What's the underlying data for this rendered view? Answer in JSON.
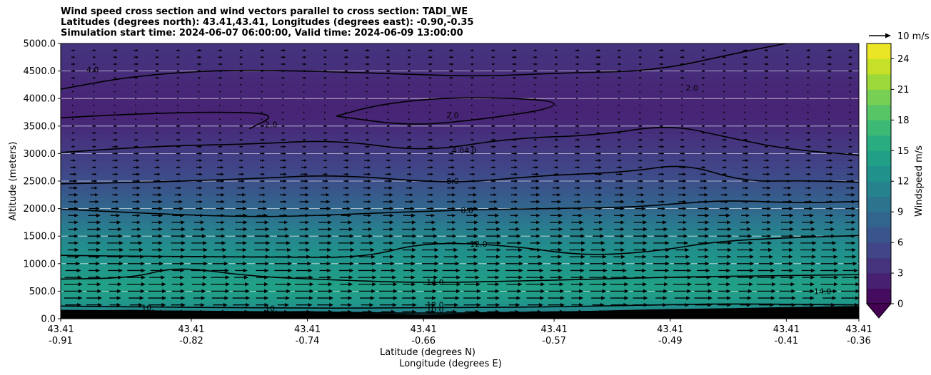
{
  "chart_data": {
    "type": "contourf_cross_section",
    "title_lines": [
      "Wind speed cross section and wind vectors parallel to cross section: TADI_WE",
      "Latitudes (degrees north): 43.41,43.41, Longitudes (degrees east): -0.90,-0.35",
      "Simulation start time: 2024-06-07 06:00:00, Valid time: 2024-06-09 13:00:00"
    ],
    "ylabel": "Altitude (meters)",
    "xlabel_lat": "Latitude (degrees N)",
    "xlabel_lon": "Longitude (degrees E)",
    "ylim": [
      0,
      5000
    ],
    "yticks": [
      "0.0",
      "500.0",
      "1000.0",
      "1500.0",
      "2000.0",
      "2500.0",
      "3000.0",
      "3500.0",
      "4000.0",
      "4500.0",
      "5000.0"
    ],
    "ytick_values": [
      0,
      500,
      1000,
      1500,
      2000,
      2500,
      3000,
      3500,
      4000,
      4500,
      5000
    ],
    "xlim": [
      -0.91,
      -0.36
    ],
    "xticks": [
      {
        "lon_value": -0.91,
        "lat": "43.41",
        "lon": "-0.91"
      },
      {
        "lon_value": -0.82,
        "lat": "43.41",
        "lon": "-0.82"
      },
      {
        "lon_value": -0.74,
        "lat": "43.41",
        "lon": "-0.74"
      },
      {
        "lon_value": -0.66,
        "lat": "43.41",
        "lon": "-0.66"
      },
      {
        "lon_value": -0.57,
        "lat": "43.41",
        "lon": "-0.57"
      },
      {
        "lon_value": -0.49,
        "lat": "43.41",
        "lon": "-0.49"
      },
      {
        "lon_value": -0.41,
        "lat": "43.41",
        "lon": "-0.41"
      },
      {
        "lon_value": -0.36,
        "lat": "43.41",
        "lon": "-0.36"
      }
    ],
    "colorbar": {
      "label": "Windspeed m/s",
      "min": 0,
      "max": 25.5,
      "ticks": [
        "0",
        "3",
        "6",
        "9",
        "12",
        "15",
        "18",
        "21",
        "24"
      ],
      "tick_values": [
        0,
        3,
        6,
        9,
        12,
        15,
        18,
        21,
        24
      ],
      "extend": "min"
    },
    "quiver_key": {
      "label": "10 m/s",
      "value": 10
    },
    "speed_profile_ms": [
      {
        "alt": 0,
        "speed": 9
      },
      {
        "alt": 100,
        "speed": 11
      },
      {
        "alt": 300,
        "speed": 13.5
      },
      {
        "alt": 600,
        "speed": 14.5
      },
      {
        "alt": 900,
        "speed": 13.5
      },
      {
        "alt": 1300,
        "speed": 12.5
      },
      {
        "alt": 1700,
        "speed": 10.5
      },
      {
        "alt": 2000,
        "speed": 8.5
      },
      {
        "alt": 2400,
        "speed": 6.5
      },
      {
        "alt": 2800,
        "speed": 5
      },
      {
        "alt": 3200,
        "speed": 4
      },
      {
        "alt": 3700,
        "speed": 2.5
      },
      {
        "alt": 4200,
        "speed": 2.8
      },
      {
        "alt": 4600,
        "speed": 3.5
      },
      {
        "alt": 5000,
        "speed": 3.8
      }
    ],
    "contour_lines": [
      {
        "level": "10.0",
        "points": [
          [
            -0.91,
            150
          ],
          [
            -0.85,
            140
          ],
          [
            -0.78,
            130
          ],
          [
            -0.7,
            110
          ],
          [
            -0.66,
            100
          ],
          [
            -0.6,
            110
          ],
          [
            -0.52,
            140
          ],
          [
            -0.45,
            160
          ],
          [
            -0.4,
            180
          ],
          [
            -0.36,
            200
          ]
        ]
      },
      {
        "level": "12.0",
        "points": [
          [
            -0.91,
            230
          ],
          [
            -0.85,
            210
          ],
          [
            -0.78,
            200
          ],
          [
            -0.72,
            190
          ],
          [
            -0.66,
            200
          ],
          [
            -0.58,
            210
          ],
          [
            -0.5,
            250
          ],
          [
            -0.45,
            270
          ],
          [
            -0.4,
            260
          ],
          [
            -0.36,
            250
          ]
        ]
      },
      {
        "level": "14.0",
        "points": [
          [
            -0.91,
            720
          ],
          [
            -0.86,
            740
          ],
          [
            -0.83,
            950
          ],
          [
            -0.78,
            770
          ],
          [
            -0.72,
            700
          ],
          [
            -0.66,
            650
          ],
          [
            -0.6,
            680
          ],
          [
            -0.54,
            720
          ],
          [
            -0.48,
            760
          ],
          [
            -0.42,
            780
          ],
          [
            -0.36,
            800
          ]
        ]
      },
      {
        "level": "12.0",
        "points": [
          [
            -0.91,
            1150
          ],
          [
            -0.84,
            1130
          ],
          [
            -0.76,
            1120
          ],
          [
            -0.7,
            1110
          ],
          [
            -0.66,
            1390
          ],
          [
            -0.6,
            1330
          ],
          [
            -0.55,
            1140
          ],
          [
            -0.5,
            1220
          ],
          [
            -0.46,
            1400
          ],
          [
            -0.41,
            1470
          ],
          [
            -0.36,
            1510
          ]
        ]
      },
      {
        "level": "8.0",
        "points": [
          [
            -0.91,
            1990
          ],
          [
            -0.84,
            1900
          ],
          [
            -0.77,
            1840
          ],
          [
            -0.7,
            1910
          ],
          [
            -0.64,
            1970
          ],
          [
            -0.58,
            2000
          ],
          [
            -0.52,
            2020
          ],
          [
            -0.48,
            2100
          ],
          [
            -0.45,
            2150
          ],
          [
            -0.4,
            2100
          ],
          [
            -0.36,
            2130
          ]
        ]
      },
      {
        "level": "6.0",
        "points": [
          [
            -0.91,
            2450
          ],
          [
            -0.85,
            2480
          ],
          [
            -0.78,
            2540
          ],
          [
            -0.72,
            2620
          ],
          [
            -0.64,
            2450
          ],
          [
            -0.58,
            2600
          ],
          [
            -0.52,
            2660
          ],
          [
            -0.48,
            2820
          ],
          [
            -0.44,
            2490
          ],
          [
            -0.4,
            2510
          ],
          [
            -0.36,
            2480
          ]
        ]
      },
      {
        "level": "4.0",
        "points": [
          [
            -0.91,
            3020
          ],
          [
            -0.84,
            3140
          ],
          [
            -0.78,
            3170
          ],
          [
            -0.72,
            3250
          ],
          [
            -0.66,
            3030
          ],
          [
            -0.6,
            3280
          ],
          [
            -0.54,
            3330
          ],
          [
            -0.49,
            3530
          ],
          [
            -0.45,
            3290
          ],
          [
            -0.41,
            3080
          ],
          [
            -0.36,
            2970
          ]
        ]
      },
      {
        "level": "2.0",
        "points": [
          [
            -0.91,
            3650
          ],
          [
            -0.86,
            3720
          ],
          [
            -0.8,
            3760
          ],
          [
            -0.76,
            3720
          ],
          [
            -0.78,
            3450
          ]
        ]
      },
      {
        "level": "2.0",
        "points": [
          [
            -0.72,
            3680
          ],
          [
            -0.69,
            3900
          ],
          [
            -0.64,
            4030
          ],
          [
            -0.57,
            3980
          ],
          [
            -0.57,
            3820
          ],
          [
            -0.62,
            3620
          ],
          [
            -0.67,
            3500
          ],
          [
            -0.72,
            3680
          ]
        ]
      },
      {
        "level": "4.0",
        "points": [
          [
            -0.91,
            4170
          ],
          [
            -0.86,
            4410
          ],
          [
            -0.8,
            4520
          ],
          [
            -0.74,
            4500
          ],
          [
            -0.68,
            4450
          ],
          [
            -0.62,
            4400
          ],
          [
            -0.56,
            4470
          ],
          [
            -0.5,
            4500
          ],
          [
            -0.44,
            4850
          ],
          [
            -0.41,
            5000
          ]
        ]
      }
    ],
    "contour_labels": [
      {
        "text": "4.0",
        "x": -0.888,
        "y": 4530
      },
      {
        "text": "2.0",
        "x": -0.64,
        "y": 3700
      },
      {
        "text": "4.04.0",
        "x": -0.632,
        "y": 3060
      },
      {
        "text": "6.0",
        "x": -0.64,
        "y": 2500
      },
      {
        "text": "8.0",
        "x": -0.63,
        "y": 1970
      },
      {
        "text": "12.0",
        "x": -0.622,
        "y": 1360
      },
      {
        "text": "14.0",
        "x": -0.652,
        "y": 660
      },
      {
        "text": "12.0",
        "x": -0.652,
        "y": 250
      },
      {
        "text": "10.0",
        "x": -0.652,
        "y": 165
      },
      {
        "text": "2.0",
        "x": -0.475,
        "y": 4200
      },
      {
        "text": "14.0",
        "x": -0.385,
        "y": 500
      },
      {
        "text": "2.0",
        "x": -0.765,
        "y": 3530
      },
      {
        "text": "10.",
        "x": -0.765,
        "y": 190
      },
      {
        "text": "10.",
        "x": -0.85,
        "y": 200
      }
    ]
  }
}
